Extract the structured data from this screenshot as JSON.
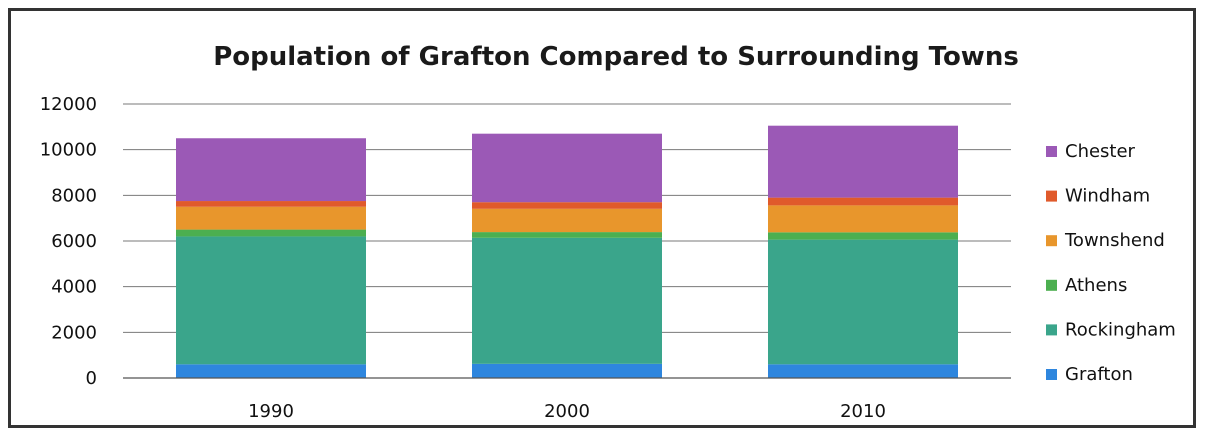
{
  "chart_data": {
    "type": "bar",
    "stacked": true,
    "title": "Population of Grafton Compared to Surrounding Towns",
    "xlabel": "",
    "ylabel": "",
    "categories": [
      "1990",
      "2000",
      "2010"
    ],
    "ylim": [
      0,
      12000
    ],
    "yticks": [
      "0",
      "2000",
      "4000",
      "6000",
      "8000",
      "10000",
      "12000"
    ],
    "grid": true,
    "legend_position": "right",
    "series": [
      {
        "name": "Grafton",
        "color": "#2e86de",
        "values": [
          600,
          620,
          600
        ]
      },
      {
        "name": "Rockingham",
        "color": "#3aa58b",
        "values": [
          5600,
          5520,
          5460
        ]
      },
      {
        "name": "Athens",
        "color": "#4caf50",
        "values": [
          300,
          250,
          320
        ]
      },
      {
        "name": "Townshend",
        "color": "#e8962c",
        "values": [
          1000,
          1020,
          1180
        ]
      },
      {
        "name": "Windham",
        "color": "#e05a2b",
        "values": [
          250,
          290,
          340
        ]
      },
      {
        "name": "Chester",
        "color": "#9b59b6",
        "values": [
          2750,
          3000,
          3150
        ]
      }
    ]
  }
}
